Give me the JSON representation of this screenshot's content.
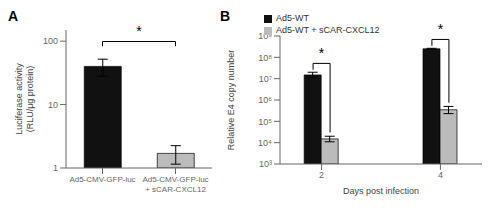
{
  "chart_data": [
    {
      "type": "bar",
      "title": "A",
      "categories": [
        "Ad5-CMV-GFP-luc",
        "Ad5-CMV-GFP-luc\n+ sCAR-CXCL12"
      ],
      "values": [
        40,
        1.7
      ],
      "errors": [
        12,
        0.55
      ],
      "colors": [
        "#111111",
        "#bbbbbb"
      ],
      "ylabel": "Luciferase activity\n(RLU/μg protein)",
      "log": "y",
      "ylim": [
        1,
        150
      ],
      "yticks": [
        1,
        10,
        100
      ],
      "grid": false,
      "annotations": [
        "*"
      ]
    },
    {
      "type": "bar",
      "title": "B",
      "x": [
        2,
        4
      ],
      "xlim": [
        1.3,
        4.7
      ],
      "xticks": [
        2,
        4
      ],
      "series": [
        {
          "name": "Ad5-WT",
          "color": "#111111",
          "values": [
            15000000,
            250000000
          ],
          "errors_low": [
            4000000,
            15000000
          ],
          "errors_high": [
            5000000,
            15000000
          ]
        },
        {
          "name": "Ad5-WT + sCAR-CXCL12",
          "color": "#bbbbbb",
          "values": [
            15000,
            350000
          ],
          "errors_low": [
            4000,
            120000
          ],
          "errors_high": [
            5000,
            150000
          ]
        }
      ],
      "xlabel": "Days post infection",
      "ylabel": "Relative E4 copy number",
      "log": "y",
      "ylim": [
        1000,
        1000000000
      ],
      "yticks": [
        {
          "value": 1000,
          "label": "10³"
        },
        {
          "value": 10000,
          "label": "10⁴"
        },
        {
          "value": 100000,
          "label": "10⁵"
        },
        {
          "value": 1000000,
          "label": "10⁶"
        },
        {
          "value": 10000000,
          "label": "10⁷"
        },
        {
          "value": 100000000,
          "label": "10⁸"
        },
        {
          "value": 1000000000,
          "label": "10⁹"
        }
      ],
      "grid": false,
      "legend": "upper left",
      "annotations": [
        "*",
        "*"
      ]
    }
  ]
}
